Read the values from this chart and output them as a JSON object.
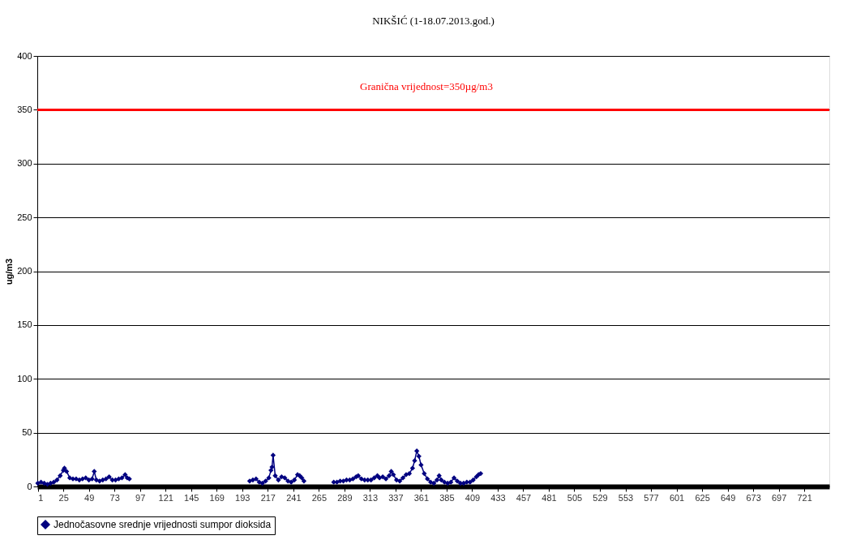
{
  "chart_data": {
    "type": "line",
    "title": "NIKŠIĆ (1-18.07.2013.god.)",
    "ylabel": "ug/m3",
    "xlim": [
      0.5,
      744.5
    ],
    "xticks": [
      1,
      25,
      49,
      73,
      97,
      121,
      145,
      169,
      193,
      217,
      241,
      265,
      289,
      313,
      337,
      361,
      385,
      409,
      433,
      457,
      481,
      505,
      529,
      553,
      577,
      601,
      625,
      649,
      673,
      697,
      721
    ],
    "ylim": [
      0,
      400
    ],
    "yticks": [
      0,
      50,
      100,
      150,
      200,
      250,
      300,
      350,
      400
    ],
    "grid": "y",
    "legend": "bottom",
    "marker": "diamond",
    "line_style": "solid",
    "ref_lines": [
      {
        "axis": "y",
        "value": 350,
        "label": "Granična vrijednost=350µg/m3",
        "color": "#ff0000"
      }
    ],
    "series": [
      {
        "name": "Jednočasovne srednje vrijednosti sumpor dioksida",
        "color": "#000080",
        "x": [
          1,
          4,
          7,
          10,
          13,
          16,
          19,
          22,
          25,
          26,
          28,
          31,
          34,
          37,
          40,
          43,
          46,
          49,
          52,
          54,
          56,
          59,
          62,
          65,
          68,
          71,
          74,
          77,
          80,
          83,
          85,
          87,
          150,
          200,
          203,
          206,
          209,
          212,
          215,
          218,
          220,
          221,
          222,
          224,
          227,
          230,
          233,
          236,
          239,
          242,
          245,
          247,
          249,
          251,
          265,
          279,
          282,
          285,
          288,
          291,
          294,
          297,
          300,
          302,
          305,
          308,
          311,
          314,
          317,
          320,
          322,
          325,
          328,
          331,
          333,
          335,
          338,
          341,
          344,
          347,
          350,
          353,
          355,
          357,
          359,
          361,
          364,
          367,
          370,
          373,
          376,
          378,
          380,
          383,
          386,
          389,
          392,
          395,
          398,
          401,
          404,
          407,
          410,
          413,
          415,
          417
        ],
        "values": [
          3,
          4,
          3,
          2,
          3,
          4,
          6,
          10,
          15,
          17,
          14,
          8,
          7,
          7,
          6,
          7,
          8,
          6,
          7,
          14,
          6,
          5,
          6,
          7,
          9,
          6,
          6,
          7,
          8,
          11,
          8,
          7,
          null,
          5,
          6,
          7,
          4,
          3,
          5,
          8,
          15,
          18,
          29,
          10,
          6,
          9,
          8,
          5,
          4,
          6,
          11,
          10,
          8,
          5,
          null,
          4,
          4,
          5,
          5,
          6,
          6,
          7,
          9,
          10,
          7,
          6,
          6,
          6,
          8,
          10,
          8,
          9,
          7,
          10,
          14,
          11,
          6,
          5,
          8,
          11,
          12,
          17,
          24,
          33,
          28,
          20,
          12,
          7,
          4,
          3,
          6,
          10,
          6,
          4,
          3,
          4,
          8,
          5,
          3,
          3,
          4,
          4,
          6,
          9,
          11,
          12
        ]
      }
    ]
  }
}
